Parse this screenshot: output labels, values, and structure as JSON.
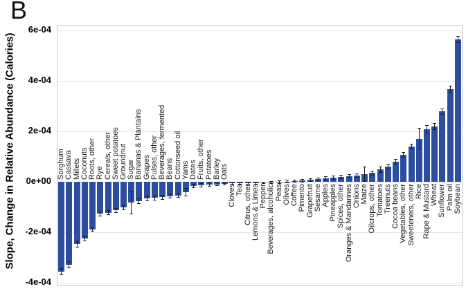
{
  "chart_data": {
    "type": "bar",
    "panel_label": "B",
    "title": "",
    "xlabel": "",
    "ylabel": "Slope, Change in Relative Abundance (Calories)",
    "ylim": [
      -0.00041,
      0.00062
    ],
    "grid": true,
    "legend": "none",
    "bar_color": "#2d4e9e",
    "error_bar_color": "#1c1c1c",
    "labels_above_axis_count": 22,
    "yticks": [
      {
        "v": 0.0006,
        "label": "6e-04"
      },
      {
        "v": 0.0004,
        "label": "4e-04"
      },
      {
        "v": 0.0002,
        "label": "2e-04"
      },
      {
        "v": 0,
        "label": "0e+00"
      },
      {
        "v": -0.0002,
        "label": "-2e-04"
      },
      {
        "v": -0.0004,
        "label": "-4e-04"
      }
    ],
    "categories": [
      "Sorghum",
      "Cassava",
      "Millets",
      "Coconuts",
      "Roots, other",
      "Rye",
      "Cereals, other",
      "Sweet potatoes",
      "Groundnut",
      "Sugar",
      "Bananas & Plantains",
      "Grapes",
      "Pulses, other",
      "Beverages, fermented",
      "Beans",
      "Cottonseed oil",
      "Yams",
      "Dates",
      "Fruits, other",
      "Potatoes",
      "Barley",
      "Oats",
      "Cloves",
      "Tea",
      "Citrus, other",
      "Lemons & Limes",
      "Pepper",
      "Beverages, alcoholic",
      "Peas",
      "Olives",
      "Coffee",
      "Pimento",
      "Grapefruit",
      "Sesame",
      "Apples",
      "Pineapples",
      "Spices, other",
      "Oranges & Mandarines",
      "Onions",
      "Maize",
      "Oilcrops, other",
      "Tomatoes",
      "Treenuts",
      "Cocoa beans",
      "Vegetables, other",
      "Sweeteners, other",
      "Rice",
      "Rape & Mustard",
      "Wheat",
      "Sunflower",
      "Palm oil",
      "Soybean"
    ],
    "values": [
      -0.000355,
      -0.000328,
      -0.000247,
      -0.000225,
      -0.000188,
      -0.000126,
      -0.000122,
      -0.000112,
      -0.000101,
      -8.2e-05,
      -7.6e-05,
      -6.6e-05,
      -6.3e-05,
      -6e-05,
      -5.6e-05,
      -5.4e-05,
      -4.1e-05,
      -1.6e-05,
      -1.3e-05,
      -1e-05,
      -9e-06,
      -7e-06,
      -5.5e-06,
      -5e-06,
      -4.2e-06,
      -3.8e-06,
      -3.2e-06,
      -2.2e-06,
      -1.2e-06,
      2e-06,
      3.5e-06,
      5.5e-06,
      8e-06,
      1.1e-05,
      1.5e-05,
      1.7e-05,
      2e-05,
      2.3e-05,
      2.6e-05,
      3.1e-05,
      3.6e-05,
      4.9e-05,
      6.1e-05,
      8.1e-05,
      0.000108,
      0.00014,
      0.000172,
      0.00021,
      0.00022,
      0.000279,
      0.000367,
      0.000565
    ],
    "errors": [
      1.2e-05,
      1.2e-05,
      1e-05,
      8e-06,
      8e-06,
      8e-06,
      8e-06,
      8e-06,
      8e-06,
      4.5e-05,
      1e-05,
      8e-06,
      8e-06,
      8e-06,
      8e-06,
      8e-06,
      1.5e-05,
      6e-06,
      6e-06,
      6e-06,
      5e-06,
      5e-06,
      3e-06,
      3e-06,
      4e-06,
      4e-06,
      4e-06,
      5e-06,
      5e-06,
      5e-06,
      5e-06,
      5e-06,
      5e-06,
      6e-06,
      6e-06,
      6e-06,
      6e-06,
      6e-06,
      7e-06,
      3e-05,
      8e-06,
      1e-05,
      1e-05,
      1e-05,
      1e-05,
      1e-05,
      4e-05,
      1.5e-05,
      1.2e-05,
      1e-05,
      1.2e-05,
      1.2e-05
    ]
  }
}
